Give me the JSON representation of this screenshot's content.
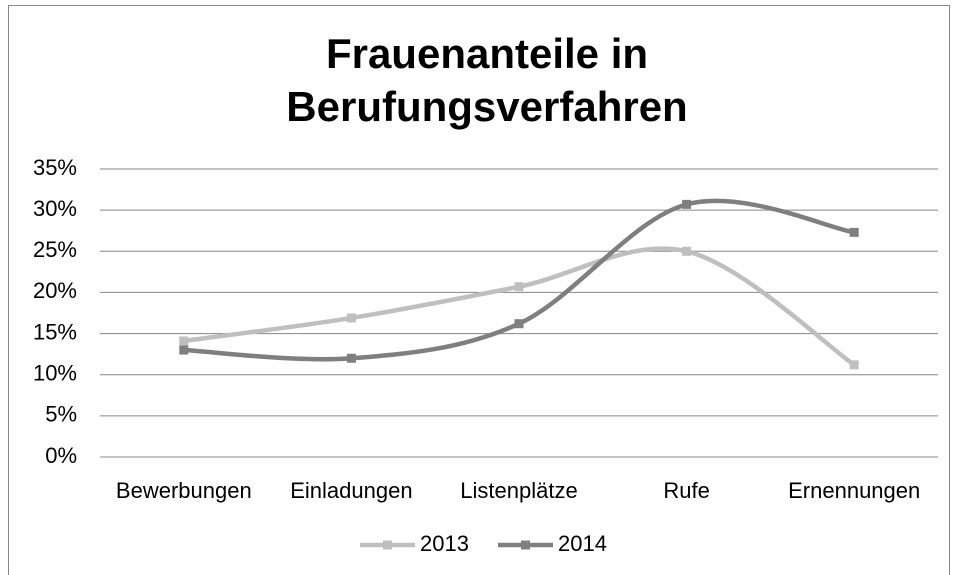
{
  "chart_data": {
    "type": "line",
    "title": [
      "Frauenanteile in",
      "Berufungsverfahren"
    ],
    "categories": [
      "Bewerbungen",
      "Einladungen",
      "Listenplätze",
      "Rufe",
      "Ernennungen"
    ],
    "series": [
      {
        "name": "2013",
        "color": "#bfbfbf",
        "values": [
          14.1,
          16.9,
          20.7,
          25.0,
          11.2
        ]
      },
      {
        "name": "2014",
        "color": "#7f7f7f",
        "values": [
          13.0,
          12.0,
          16.2,
          30.7,
          27.3
        ]
      }
    ],
    "ylim": [
      0,
      35
    ],
    "yticks": [
      {
        "value": 0,
        "label": "0%"
      },
      {
        "value": 5,
        "label": "5%"
      },
      {
        "value": 10,
        "label": "10%"
      },
      {
        "value": 15,
        "label": "15%"
      },
      {
        "value": 20,
        "label": "20%"
      },
      {
        "value": 25,
        "label": "25%"
      },
      {
        "value": 30,
        "label": "30%"
      },
      {
        "value": 35,
        "label": "35%"
      }
    ],
    "grid": true,
    "smooth": true,
    "legend": "bottom"
  }
}
